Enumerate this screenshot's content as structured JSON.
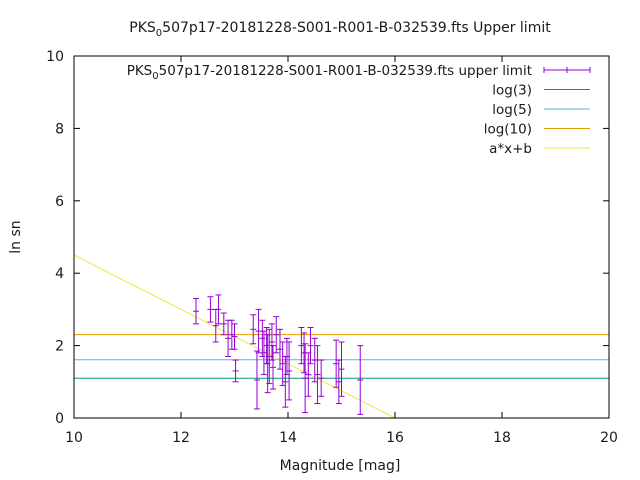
{
  "chart_data": {
    "type": "scatter",
    "title": {
      "prefix": "PKS",
      "sub": "0",
      "suffix": "507p17-20181228-S001-R001-B-032539.fts Upper limit"
    },
    "xlabel": "Magnitude [mag]",
    "ylabel": "ln sn",
    "xlim": [
      10,
      20
    ],
    "ylim": [
      0,
      10
    ],
    "xticks": [
      "10",
      "12",
      "14",
      "16",
      "18",
      "20"
    ],
    "yticks": [
      "0",
      "2",
      "4",
      "6",
      "8",
      "10"
    ],
    "grid": false,
    "legend_position": "top-right",
    "series": [
      {
        "name": "PKS_0507p17-20181228-S001-R001-B-032539.fts upper limit",
        "legend_label": {
          "prefix": "PKS",
          "sub": "0",
          "suffix": "507p17-20181228-S001-R001-B-032539.fts upper limit"
        },
        "kind": "errorbar",
        "color": "#9400d3",
        "points": [
          {
            "x": 12.28,
            "y": 2.95,
            "err": 0.35
          },
          {
            "x": 12.55,
            "y": 3.0,
            "err": 0.35
          },
          {
            "x": 12.65,
            "y": 2.55,
            "err": 0.45
          },
          {
            "x": 12.7,
            "y": 3.0,
            "err": 0.4
          },
          {
            "x": 12.8,
            "y": 2.6,
            "err": 0.3
          },
          {
            "x": 12.88,
            "y": 2.2,
            "err": 0.5
          },
          {
            "x": 12.95,
            "y": 2.3,
            "err": 0.4
          },
          {
            "x": 13.0,
            "y": 2.25,
            "err": 0.35
          },
          {
            "x": 13.02,
            "y": 1.3,
            "err": 0.3
          },
          {
            "x": 13.35,
            "y": 2.45,
            "err": 0.4
          },
          {
            "x": 13.42,
            "y": 1.05,
            "err": 0.8
          },
          {
            "x": 13.45,
            "y": 2.4,
            "err": 0.6
          },
          {
            "x": 13.52,
            "y": 2.2,
            "err": 0.5
          },
          {
            "x": 13.55,
            "y": 1.8,
            "err": 0.6
          },
          {
            "x": 13.6,
            "y": 2.0,
            "err": 0.5
          },
          {
            "x": 13.62,
            "y": 1.5,
            "err": 0.8
          },
          {
            "x": 13.65,
            "y": 1.7,
            "err": 0.75
          },
          {
            "x": 13.7,
            "y": 2.1,
            "err": 0.5
          },
          {
            "x": 13.72,
            "y": 1.4,
            "err": 0.6
          },
          {
            "x": 13.78,
            "y": 2.3,
            "err": 0.5
          },
          {
            "x": 13.85,
            "y": 1.9,
            "err": 0.55
          },
          {
            "x": 13.9,
            "y": 1.5,
            "err": 0.6
          },
          {
            "x": 13.95,
            "y": 1.0,
            "err": 0.7
          },
          {
            "x": 13.98,
            "y": 1.7,
            "err": 0.5
          },
          {
            "x": 14.02,
            "y": 1.3,
            "err": 0.8
          },
          {
            "x": 14.25,
            "y": 2.0,
            "err": 0.5
          },
          {
            "x": 14.3,
            "y": 1.8,
            "err": 0.55
          },
          {
            "x": 14.32,
            "y": 1.1,
            "err": 0.95
          },
          {
            "x": 14.38,
            "y": 1.2,
            "err": 0.6
          },
          {
            "x": 14.42,
            "y": 2.0,
            "err": 0.5
          },
          {
            "x": 14.5,
            "y": 1.6,
            "err": 0.6
          },
          {
            "x": 14.55,
            "y": 1.2,
            "err": 0.8
          },
          {
            "x": 14.62,
            "y": 1.1,
            "err": 0.5
          },
          {
            "x": 14.9,
            "y": 1.5,
            "err": 0.65
          },
          {
            "x": 14.95,
            "y": 1.0,
            "err": 0.6
          },
          {
            "x": 15.0,
            "y": 1.35,
            "err": 0.75
          },
          {
            "x": 15.35,
            "y": 1.05,
            "err": 0.95
          }
        ]
      },
      {
        "name": "log(3)",
        "kind": "hline",
        "y": 1.0986,
        "color": "#009e73"
      },
      {
        "name": "log(5)",
        "kind": "hline",
        "y": 1.6094,
        "color": "#56b4e9"
      },
      {
        "name": "log(10)",
        "kind": "hline",
        "y": 2.3026,
        "color": "#e69f00"
      },
      {
        "name": "a*x+b",
        "kind": "line",
        "color": "#f0e442",
        "x": [
          10,
          16
        ],
        "y": [
          4.5,
          0
        ]
      }
    ]
  }
}
